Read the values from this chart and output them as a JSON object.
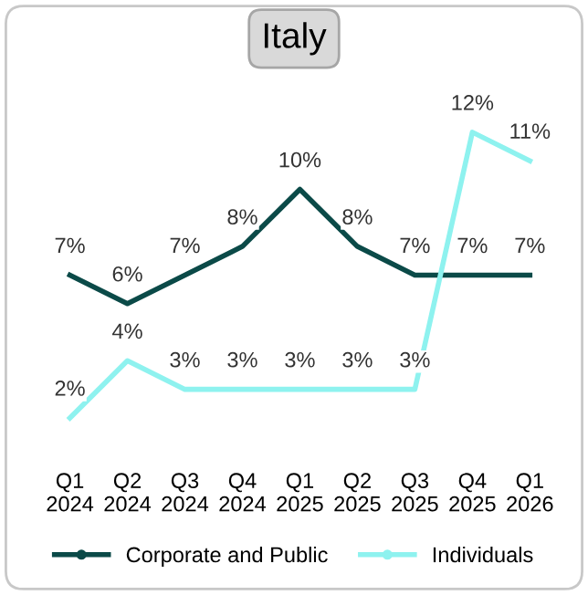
{
  "chart_data": {
    "type": "line",
    "title": "Italy",
    "categories": [
      "Q1\n2024",
      "Q2\n2024",
      "Q3\n2024",
      "Q4\n2024",
      "Q1\n2025",
      "Q2\n2025",
      "Q3\n2025",
      "Q4\n2025",
      "Q1\n2026"
    ],
    "series": [
      {
        "name": "Corporate and Public",
        "color": "#0b4a48",
        "values": [
          7,
          6,
          7,
          8,
          10,
          8,
          7,
          7,
          7
        ],
        "value_labels": [
          "7%",
          "6%",
          "7%",
          "8%",
          "10%",
          "8%",
          "7%",
          "7%",
          "7%"
        ]
      },
      {
        "name": "Individuals",
        "color": "#8ef2ef",
        "values": [
          2,
          4,
          3,
          3,
          3,
          3,
          3,
          12,
          11
        ],
        "value_labels": [
          "2%",
          "4%",
          "3%",
          "3%",
          "3%",
          "3%",
          "3%",
          "12%",
          "11%"
        ]
      }
    ],
    "legend": "bottom"
  }
}
